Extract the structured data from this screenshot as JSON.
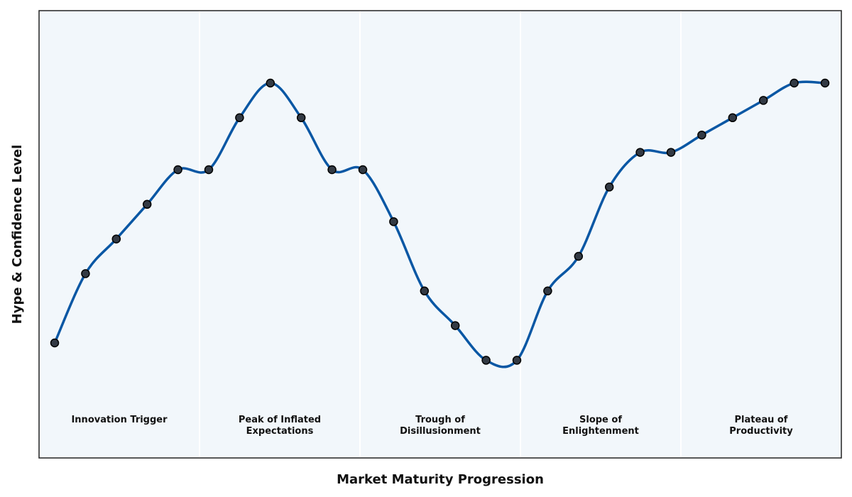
{
  "chart_data": {
    "type": "line",
    "xlabel": "Market Maturity Progression",
    "ylabel": "Hype & Confidence Level",
    "ylim": [
      0,
      100
    ],
    "grid": false,
    "phases": [
      {
        "label_lines": [
          "Innovation Trigger"
        ]
      },
      {
        "label_lines": [
          "Peak of Inflated",
          "Expectations"
        ]
      },
      {
        "label_lines": [
          "Trough of",
          "Disillusionment"
        ]
      },
      {
        "label_lines": [
          "Slope of",
          "Enlightenment"
        ]
      },
      {
        "label_lines": [
          "Plateau of",
          "Productivity"
        ]
      }
    ],
    "x": [
      0,
      1,
      2,
      3,
      4,
      5,
      6,
      7,
      8,
      9,
      10,
      11,
      12,
      13,
      14,
      15,
      16,
      17,
      18,
      19,
      20,
      21,
      22,
      23,
      24,
      25
    ],
    "y": [
      25,
      45,
      55,
      65,
      75,
      75,
      90,
      100,
      90,
      75,
      75,
      60,
      40,
      30,
      20,
      20,
      40,
      50,
      70,
      80,
      80,
      85,
      90,
      95,
      100,
      100
    ],
    "colors": {
      "line": "#0a57a4",
      "marker_fill": "#333a44",
      "marker_edge": "#000000",
      "plot_bg": "#f2f7fb",
      "frame": "#222222",
      "divider": "#ffffff"
    }
  }
}
